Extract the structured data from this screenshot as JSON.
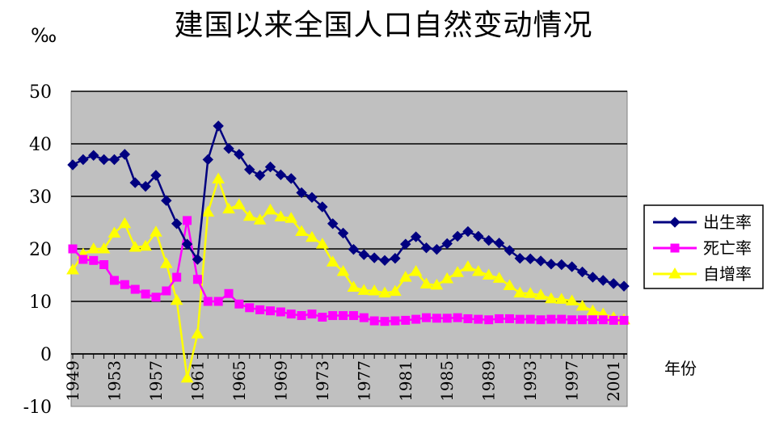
{
  "chart_data": {
    "type": "line",
    "title": "建国以来全国人口自然变动情况",
    "ylabel": "‰",
    "xlabel": "年份",
    "ylim": [
      -10,
      50
    ],
    "yticks": [
      -10,
      0,
      10,
      20,
      30,
      40,
      50
    ],
    "grid": true,
    "legend": "right",
    "background": "#c0c0c0",
    "x": [
      1949,
      1950,
      1951,
      1952,
      1953,
      1954,
      1955,
      1956,
      1957,
      1958,
      1959,
      1960,
      1961,
      1962,
      1963,
      1964,
      1965,
      1966,
      1967,
      1968,
      1969,
      1970,
      1971,
      1972,
      1973,
      1974,
      1975,
      1976,
      1977,
      1978,
      1979,
      1980,
      1981,
      1982,
      1983,
      1984,
      1985,
      1986,
      1987,
      1988,
      1989,
      1990,
      1991,
      1992,
      1993,
      1994,
      1995,
      1996,
      1997,
      1998,
      1999,
      2000,
      2001,
      2002
    ],
    "xticklabels": [
      "1949",
      "1953",
      "1957",
      "1961",
      "1965",
      "1969",
      "1973",
      "1977",
      "1981",
      "1985",
      "1989",
      "1993",
      "1997",
      "2001"
    ],
    "series": [
      {
        "name": "出生率",
        "color": "#000080",
        "marker": "diamond",
        "values": [
          36.0,
          37.0,
          37.8,
          37.0,
          37.0,
          38.0,
          32.6,
          31.9,
          34.0,
          29.2,
          24.8,
          20.9,
          18.0,
          37.0,
          43.4,
          39.1,
          38.0,
          35.1,
          34.0,
          35.6,
          34.1,
          33.4,
          30.7,
          29.8,
          28.0,
          24.8,
          23.0,
          19.9,
          18.9,
          18.3,
          17.8,
          18.2,
          20.9,
          22.3,
          20.2,
          19.9,
          21.0,
          22.4,
          23.3,
          22.4,
          21.6,
          21.1,
          19.7,
          18.2,
          18.1,
          17.7,
          17.1,
          17.0,
          16.6,
          15.6,
          14.6,
          14.0,
          13.4,
          12.9
        ]
      },
      {
        "name": "死亡率",
        "color": "#ff00ff",
        "marker": "square",
        "values": [
          20.0,
          18.0,
          17.8,
          17.0,
          14.0,
          13.2,
          12.3,
          11.4,
          10.8,
          12.0,
          14.6,
          25.4,
          14.2,
          10.0,
          10.0,
          11.5,
          9.5,
          8.8,
          8.4,
          8.2,
          8.0,
          7.6,
          7.3,
          7.6,
          7.0,
          7.3,
          7.3,
          7.3,
          6.9,
          6.3,
          6.2,
          6.3,
          6.4,
          6.6,
          6.9,
          6.8,
          6.8,
          6.9,
          6.7,
          6.6,
          6.5,
          6.7,
          6.7,
          6.6,
          6.6,
          6.5,
          6.6,
          6.6,
          6.5,
          6.5,
          6.5,
          6.5,
          6.4,
          6.4
        ]
      },
      {
        "name": "自增率",
        "color": "#ffff00",
        "marker": "triangle",
        "values": [
          16.0,
          19.0,
          20.0,
          20.0,
          23.0,
          24.8,
          20.3,
          20.5,
          23.2,
          17.2,
          10.2,
          -4.6,
          3.8,
          27.0,
          33.3,
          27.6,
          28.4,
          26.2,
          25.5,
          27.4,
          26.1,
          25.8,
          23.3,
          22.2,
          20.9,
          17.5,
          15.7,
          12.7,
          12.1,
          12.0,
          11.6,
          11.9,
          14.6,
          15.7,
          13.3,
          13.1,
          14.3,
          15.5,
          16.6,
          15.7,
          15.0,
          14.4,
          13.0,
          11.6,
          11.5,
          11.2,
          10.5,
          10.4,
          10.1,
          9.1,
          8.2,
          7.6,
          6.9,
          6.5
        ]
      }
    ]
  }
}
